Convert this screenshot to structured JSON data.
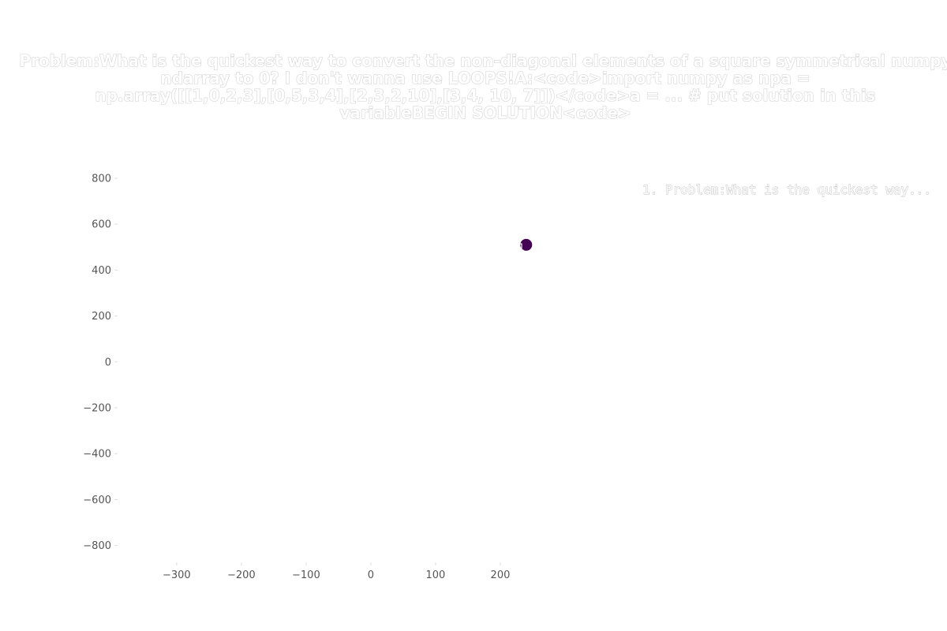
{
  "chart_data": {
    "type": "scatter",
    "title_lines": [
      "Problem:What is the quickest way to convert the non-diagonal elements of a square symmetrical numpy",
      "ndarray to 0? I don't wanna use LOOPS!A:<code>import numpy as npa =",
      "np.array([[1,0,2,3],[0,5,3,4],[2,3,2,10],[3,4, 10, 7]])</code>a = ... # put solution in this",
      "variableBEGIN SOLUTION<code>"
    ],
    "xlim": [
      -390,
      300
    ],
    "ylim": [
      -870,
      800
    ],
    "x_ticks": [
      -300,
      -200,
      -100,
      0,
      100,
      200
    ],
    "x_tick_labels": [
      "−300",
      "−200",
      "−100",
      "0",
      "100",
      "200"
    ],
    "y_ticks": [
      800,
      600,
      400,
      200,
      0,
      -200,
      -400,
      -600,
      -800
    ],
    "y_tick_labels": [
      "800",
      "600",
      "400",
      "200",
      "0",
      "−200",
      "−400",
      "−600",
      "−800"
    ],
    "points": [
      {
        "x": 240,
        "y": 510,
        "label": "1",
        "color": "#440154"
      }
    ],
    "legend": {
      "placement": "top-right",
      "entries": [
        "1. Problem:What is the quickest way..."
      ]
    },
    "grid": false
  }
}
